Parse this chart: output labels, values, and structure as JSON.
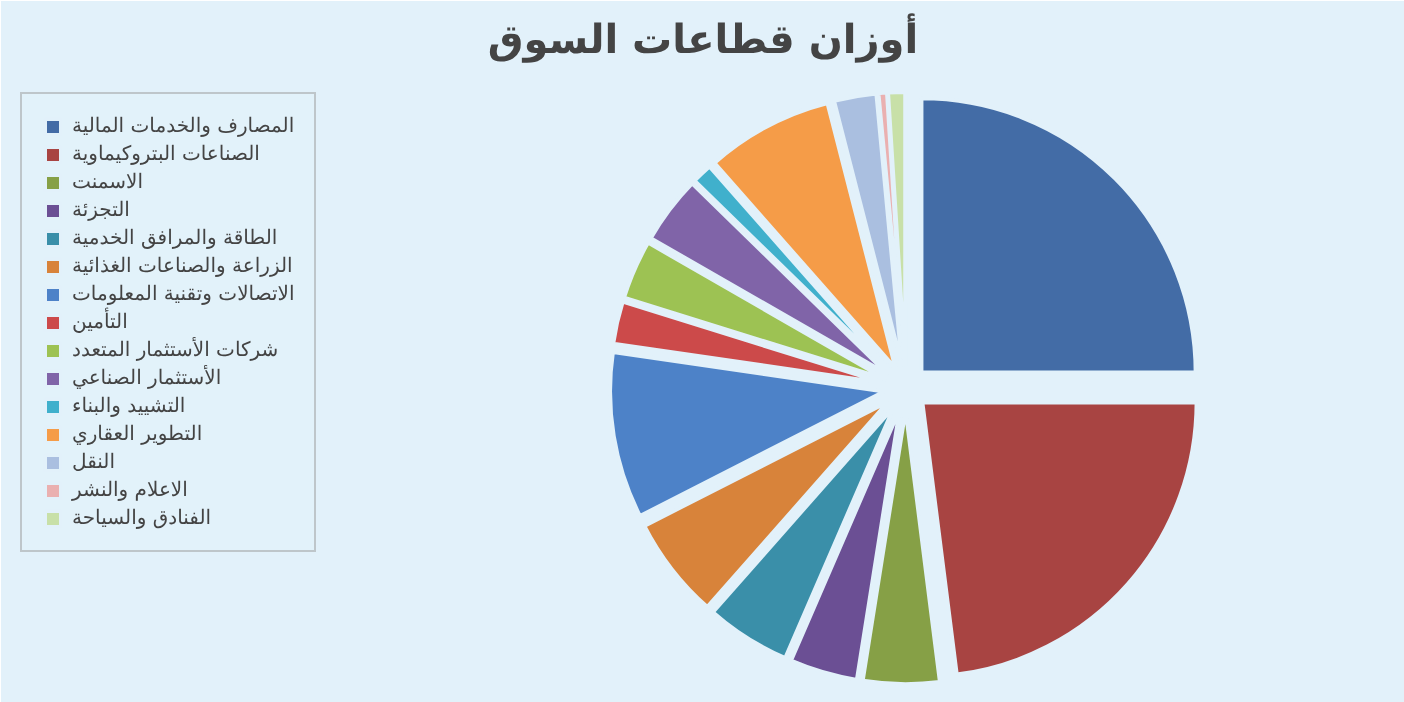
{
  "chart_data": {
    "type": "pie",
    "title": "أوزان قطاعات السوق",
    "legend": "left",
    "categories": [
      "المصارف والخدمات المالية",
      "الصناعات البتروكيماوية",
      "الاسمنت",
      "التجزئة",
      "الطاقة والمرافق الخدمية",
      "الزراعة والصناعات الغذائية",
      "الاتصالات وتقنية المعلومات",
      "التأمين",
      "شركات الأستثمار المتعدد",
      "الأستثمار الصناعي",
      "التشييد والبناء",
      "التطوير العقاري",
      "النقل",
      "الاعلام والنشر",
      "الفنادق والسياحة"
    ],
    "values": [
      25,
      23,
      4.5,
      4,
      5,
      6,
      9.8,
      2.5,
      3.5,
      4,
      1.2,
      7.5,
      2.5,
      0.5,
      1
    ],
    "colors": [
      "#436ca6",
      "#a84442",
      "#86a046",
      "#6b4f94",
      "#3a8fa9",
      "#d8833a",
      "#4d82c8",
      "#cc4a4a",
      "#9dc253",
      "#8064a8",
      "#40b0cc",
      "#f59c48",
      "#aabfe0",
      "#eab0b0",
      "#c8e0a8"
    ]
  }
}
